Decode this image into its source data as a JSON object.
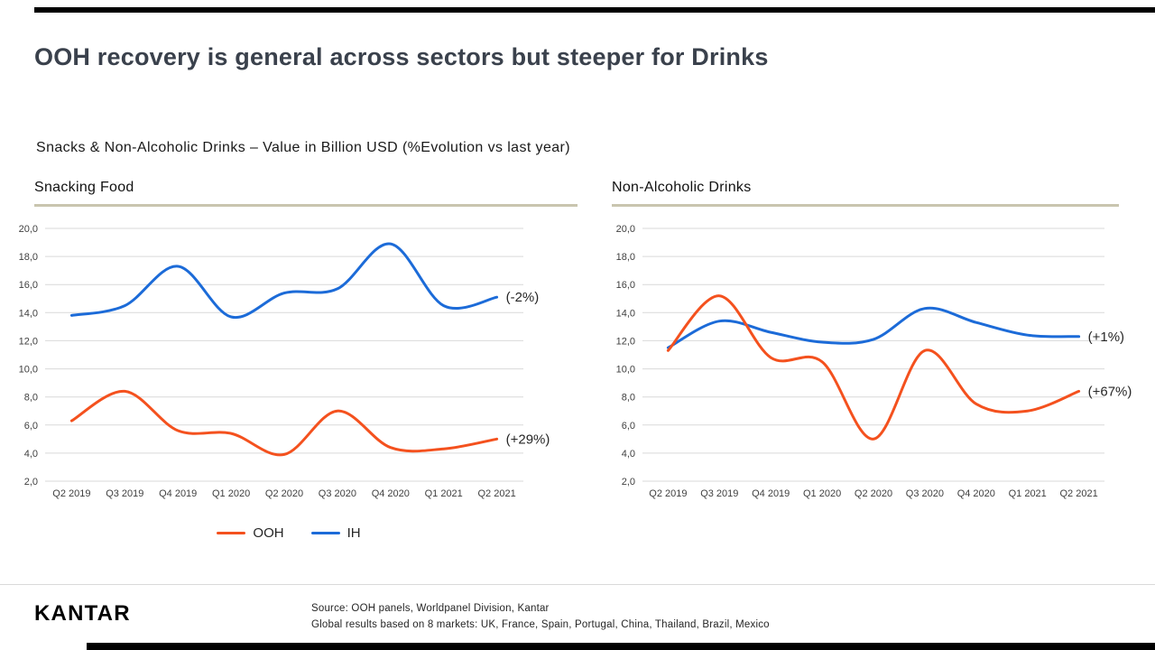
{
  "page": {
    "title": "OOH recovery is general across sectors but steeper for Drinks",
    "subtitle": "Snacks & Non-Alcoholic Drinks – Value in Billion USD (%Evolution vs last year)"
  },
  "colors": {
    "ooh_orange": "#F4511E",
    "ih_blue": "#1C6BD8",
    "gridline": "#D9D9D9",
    "panel_rule": "#C9C5AF",
    "title_text": "#3A414C",
    "accent_bar": "#000000"
  },
  "legend": [
    {
      "label": "OOH",
      "color": "#F4511E"
    },
    {
      "label": "IH",
      "color": "#1C6BD8"
    }
  ],
  "chart_data": [
    {
      "type": "line",
      "title": "Snacking Food",
      "categories": [
        "Q2 2019",
        "Q3 2019",
        "Q4 2019",
        "Q1 2020",
        "Q2 2020",
        "Q3 2020",
        "Q4 2020",
        "Q1 2021",
        "Q2 2021"
      ],
      "series": [
        {
          "name": "OOH",
          "color": "#F4511E",
          "values": [
            6.3,
            8.4,
            5.6,
            5.4,
            3.9,
            7.0,
            4.4,
            4.3,
            5.0
          ],
          "annotation": "(+29%)"
        },
        {
          "name": "IH",
          "color": "#1C6BD8",
          "values": [
            13.8,
            14.5,
            17.3,
            13.7,
            15.4,
            15.7,
            18.9,
            14.5,
            15.1
          ],
          "annotation": "(-2%)"
        }
      ],
      "ylim": [
        2,
        20
      ],
      "ytick_step": 2,
      "ytick_labels": [
        "2,0",
        "4,0",
        "6,0",
        "8,0",
        "10,0",
        "12,0",
        "14,0",
        "16,0",
        "18,0",
        "20,0"
      ],
      "grid": true,
      "legend_position": "bottom"
    },
    {
      "type": "line",
      "title": "Non-Alcoholic Drinks",
      "categories": [
        "Q2 2019",
        "Q3 2019",
        "Q4 2019",
        "Q1 2020",
        "Q2 2020",
        "Q3 2020",
        "Q4 2020",
        "Q1 2021",
        "Q2 2021"
      ],
      "series": [
        {
          "name": "OOH",
          "color": "#F4511E",
          "values": [
            11.3,
            15.2,
            10.8,
            10.5,
            5.0,
            11.3,
            7.5,
            7.0,
            8.4
          ],
          "annotation": "(+67%)"
        },
        {
          "name": "IH",
          "color": "#1C6BD8",
          "values": [
            11.5,
            13.4,
            12.6,
            11.9,
            12.1,
            14.3,
            13.3,
            12.4,
            12.3
          ],
          "annotation": "(+1%)"
        }
      ],
      "ylim": [
        2,
        20
      ],
      "ytick_step": 2,
      "ytick_labels": [
        "2,0",
        "4,0",
        "6,0",
        "8,0",
        "10,0",
        "12,0",
        "14,0",
        "16,0",
        "18,0",
        "20,0"
      ],
      "grid": true,
      "legend_position": "none"
    }
  ],
  "footer": {
    "logo": "KANTAR",
    "source_line1": "Source: OOH panels, Worldpanel Division, Kantar",
    "source_line2": "Global results based on 8 markets: UK, France, Spain, Portugal, China, Thailand, Brazil, Mexico"
  }
}
